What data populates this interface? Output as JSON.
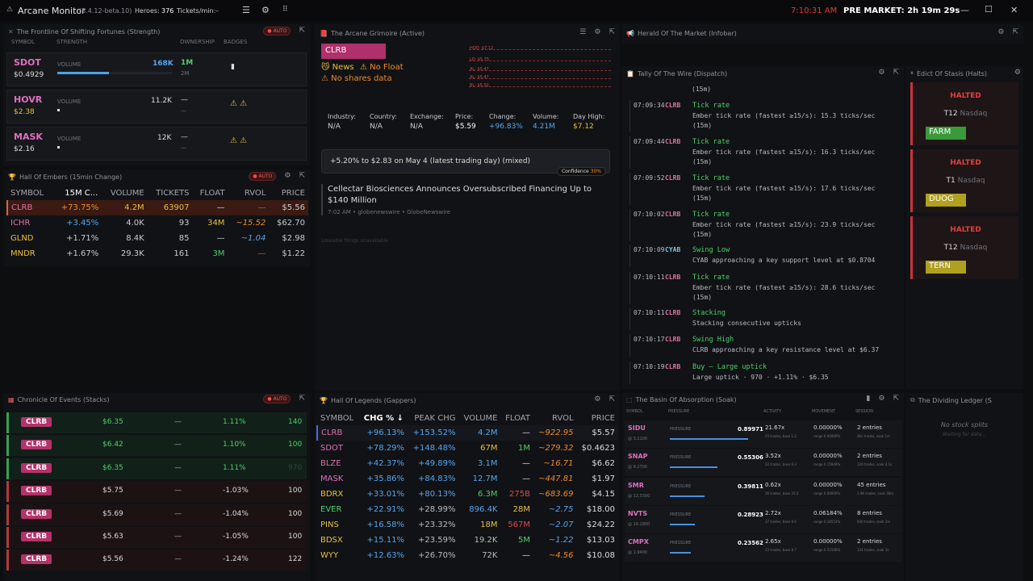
{
  "app": {
    "title": "Arcane Monitor",
    "version": "(5.4.12-beta.10)",
    "heroes_label": "Heroes:",
    "heroes_value": "376",
    "tickets_label": "Tickets/min:",
    "tickets_value": "–",
    "clock": "7:10:31 AM",
    "premarket": "PRE MARKET:  2h 19m 29s"
  },
  "strength": {
    "title": "The Frontline Of Shifting Fortunes (Strength)",
    "auto": "AUTO",
    "headers": {
      "symbol": "SYMBOL",
      "strength": "STRENGTH",
      "ownership": "OWNERSHIP",
      "badges": "BADGES"
    },
    "rows": [
      {
        "symbol": "SDOT",
        "price": "$0.4929",
        "label": "VOLUME",
        "volume": "168K",
        "own": "1M",
        "own_sub": "2M",
        "fill": 0.45
      },
      {
        "symbol": "HOVR",
        "price": "$2.38",
        "label": "VOLUME",
        "volume": "11.2K",
        "own": "—",
        "own_sub": "—",
        "fill": 0.02
      },
      {
        "symbol": "MASK",
        "price": "$2.16",
        "label": "VOLUME",
        "volume": "12K",
        "own": "—",
        "own_sub": "—",
        "fill": 0.02
      }
    ]
  },
  "embers": {
    "title": "Hall Of Embers (15min Change)",
    "auto": "AUTO",
    "headers": [
      "SYMBOL",
      "15M C...",
      "VOLUME",
      "TICKETS",
      "FLOAT",
      "RVOL",
      "PRICE"
    ],
    "rows": [
      [
        "CLRB",
        "+73.75%",
        "4.2M",
        "63907",
        "—",
        "—",
        "$5.56"
      ],
      [
        "ICHR",
        "+3.45%",
        "4.0K",
        "93",
        "34M",
        "~15.52",
        "$62.70"
      ],
      [
        "GLND",
        "+1.71%",
        "8.4K",
        "85",
        "—",
        "~1.04",
        "$2.98"
      ],
      [
        "MNDR",
        "+1.67%",
        "29.3K",
        "161",
        "3M",
        "—",
        "$1.22"
      ]
    ]
  },
  "grimoire": {
    "title": "The Arcane Grimoire (Active)",
    "symbol": "CLRB",
    "news": "News",
    "nofloat": "No Float",
    "noshares": "No shares data",
    "fields": [
      {
        "k": "Industry:",
        "v": "N/A"
      },
      {
        "k": "Country:",
        "v": "N/A"
      },
      {
        "k": "Exchange:",
        "v": "N/A"
      },
      {
        "k": "Price:",
        "v": "$5.59"
      },
      {
        "k": "Change:",
        "v": "+96.83%"
      },
      {
        "k": "Volume:",
        "v": "4.21M"
      },
      {
        "k": "Day High:",
        "v": "$7.12"
      }
    ],
    "mini": [
      "HOD: $7.12",
      "LO: $5.75",
      "AL: $5.47",
      "AL: $5.47",
      "BL: $5.02"
    ],
    "summary": "+5.20% to $2.83 on May 4 (latest trading day) (mixed)",
    "confidence": "Confidence",
    "confidence_val": "30%",
    "headline": "Cellectar Biosciences Announces Oversubscribed Financing Up to $140 Million",
    "headline_meta": "7:02 AM • globenewswire • GlobeNewswire",
    "footer": "Loseable filings unavailable"
  },
  "herald": {
    "title": "Herald Of The Market (Infobar)"
  },
  "dispatch": {
    "title": "Tally Of The Wire (Dispatch)",
    "top": "(15m)",
    "items": [
      {
        "time": "07:09:34",
        "sym": "CLRB",
        "head": "Tick rate",
        "body": "Ember tick rate (fastest ≥15/s): 15.3 ticks/sec",
        "sub": "(15m)"
      },
      {
        "time": "07:09:44",
        "sym": "CLRB",
        "head": "Tick rate",
        "body": "Ember tick rate (fastest ≥15/s): 16.3 ticks/sec",
        "sub": "(15m)"
      },
      {
        "time": "07:09:52",
        "sym": "CLRB",
        "head": "Tick rate",
        "body": "Ember tick rate (fastest ≥15/s): 17.6 ticks/sec",
        "sub": "(15m)"
      },
      {
        "time": "07:10:02",
        "sym": "CLRB",
        "head": "Tick rate",
        "body": "Ember tick rate (fastest ≥15/s): 23.9 ticks/sec",
        "sub": "(15m)"
      },
      {
        "time": "07:10:09",
        "sym": "CYAB",
        "head": "Swing Low",
        "body": "CYAB approaching a key support level at $0.8704",
        "sub": ""
      },
      {
        "time": "07:10:11",
        "sym": "CLRB",
        "head": "Tick rate",
        "body": "Ember tick rate (fastest ≥15/s): 28.6 ticks/sec",
        "sub": "(15m)"
      },
      {
        "time": "07:10:11",
        "sym": "CLRB",
        "head": "Stacking",
        "body": "Stacking consecutive upticks",
        "sub": ""
      },
      {
        "time": "07:10:17",
        "sym": "CLRB",
        "head": "Swing High",
        "body": "CLRB approaching a key resistance level at $6.37",
        "sub": ""
      },
      {
        "time": "07:10:19",
        "sym": "CLRB",
        "head": "Buy – Large uptick",
        "body": "Large uptick · 970 · +1.11% · $6.35",
        "sub": ""
      }
    ]
  },
  "halts": {
    "title": "Edict Of Stasis (Halts)",
    "items": [
      {
        "status": "HALTED",
        "code": "T12",
        "exch": "Nasdaq",
        "sym": "FARM"
      },
      {
        "status": "HALTED",
        "code": "T1",
        "exch": "Nasdaq",
        "sym": "DUOG"
      },
      {
        "status": "HALTED",
        "code": "T12",
        "exch": "Nasdaq",
        "sym": "TERN"
      }
    ]
  },
  "chronicle": {
    "title": "Chronicle Of Events (Stacks)",
    "auto": "AUTO",
    "rows": [
      {
        "sym": "CLRB",
        "price": "$6.35",
        "mid": "—",
        "pct": "1.11%",
        "qty": "140",
        "pos": true
      },
      {
        "sym": "CLRB",
        "price": "$6.42",
        "mid": "—",
        "pct": "1.10%",
        "qty": "100",
        "pos": true
      },
      {
        "sym": "CLRB",
        "price": "$6.35",
        "mid": "—",
        "pct": "1.11%",
        "qty": "970",
        "pos": true
      },
      {
        "sym": "CLRB",
        "price": "$5.75",
        "mid": "—",
        "pct": "-1.03%",
        "qty": "100",
        "pos": false
      },
      {
        "sym": "CLRB",
        "price": "$5.69",
        "mid": "—",
        "pct": "-1.04%",
        "qty": "100",
        "pos": false
      },
      {
        "sym": "CLRB",
        "price": "$5.63",
        "mid": "—",
        "pct": "-1.05%",
        "qty": "100",
        "pos": false
      },
      {
        "sym": "CLRB",
        "price": "$5.56",
        "mid": "—",
        "pct": "-1.24%",
        "qty": "122",
        "pos": false
      }
    ]
  },
  "legends": {
    "title": "Hall Of Legends (Gappers)",
    "headers": [
      "SYMBOL",
      "CHG % ↓",
      "PEAK CHG",
      "VOLUME",
      "FLOAT",
      "RVOL",
      "PRICE"
    ],
    "rows": [
      [
        "CLRB",
        "+96.13%",
        "+153.52%",
        "4.2M",
        "—",
        "~922.95",
        "$5.57"
      ],
      [
        "SDOT",
        "+78.29%",
        "+148.48%",
        "67M",
        "1M",
        "~279.32",
        "$0.4623"
      ],
      [
        "BLZE",
        "+42.37%",
        "+49.89%",
        "3.1M",
        "—",
        "~16.71",
        "$6.62"
      ],
      [
        "MASK",
        "+35.86%",
        "+84.83%",
        "12.7M",
        "—",
        "~447.81",
        "$1.97"
      ],
      [
        "BDRX",
        "+33.01%",
        "+80.13%",
        "6.3M",
        "275B",
        "~683.69",
        "$4.15"
      ],
      [
        "EVER",
        "+22.91%",
        "+28.99%",
        "896.4K",
        "28M",
        "~2.75",
        "$18.00"
      ],
      [
        "PINS",
        "+16.58%",
        "+23.32%",
        "18M",
        "567M",
        "~2.07",
        "$24.22"
      ],
      [
        "BDSX",
        "+15.11%",
        "+23.59%",
        "19.2K",
        "5M",
        "~1.22",
        "$13.03"
      ],
      [
        "WYY",
        "+12.63%",
        "+26.70%",
        "72K",
        "—",
        "~4.56",
        "$10.08"
      ]
    ]
  },
  "soak": {
    "title": "The Basin Of Absorption (Soak)",
    "headers": [
      "SYMBOL",
      "PRESSURE",
      "ACTIVITY",
      "MOVEMENT",
      "SESSION"
    ],
    "rows": [
      {
        "sym": "SIDU",
        "price": "@ 3.1100",
        "label": "PRESSURE",
        "val": "0.89971",
        "act": "21.67x",
        "act_sub": "25 trades, base 1.2",
        "mov": "0.00000%",
        "mov_sub": "range 0.00000%",
        "ses": "2 entries",
        "ses_sub": "46s trades, soak 1m",
        "fill": 0.9
      },
      {
        "sym": "SNAP",
        "price": "@ 6.2700",
        "label": "PRESSURE",
        "val": "0.55306",
        "act": "3.52x",
        "act_sub": "22 trades, base 6.3",
        "mov": "0.00000%",
        "mov_sub": "range 0.15949%",
        "ses": "2 entries",
        "ses_sub": "120 trades, soak 4.1s",
        "fill": 0.55
      },
      {
        "sym": "SMR",
        "price": "@ 12.3300",
        "label": "PRESSURE",
        "val": "0.39811",
        "act": "0.62x",
        "act_sub": "36 trades, base 25.0",
        "mov": "0.00000%",
        "mov_sub": "range 0.00000%",
        "ses": "45 entries",
        "ses_sub": "1.9K trades, soak 38m",
        "fill": 0.4
      },
      {
        "sym": "NVTS",
        "price": "@ 16.1800",
        "label": "PRESSURE",
        "val": "0.28923",
        "act": "2.72x",
        "act_sub": "37 trades, base 9.5",
        "mov": "0.06184%",
        "mov_sub": "range 0.18553%",
        "ses": "8 entries",
        "ses_sub": "600 trades, soak 2m",
        "fill": 0.29
      },
      {
        "sym": "CMPX",
        "price": "@ 1.9400",
        "label": "PRESSURE",
        "val": "0.23562",
        "act": "2.65x",
        "act_sub": "23 trades, base 8.7",
        "mov": "0.00000%",
        "mov_sub": "range 0.51546%",
        "ses": "2 entries",
        "ses_sub": "124 trades, soak 3s",
        "fill": 0.24
      }
    ]
  },
  "ledger": {
    "title": "The Dividing Ledger (S",
    "empty": "No stock splits",
    "sub": "Waiting for data..."
  }
}
